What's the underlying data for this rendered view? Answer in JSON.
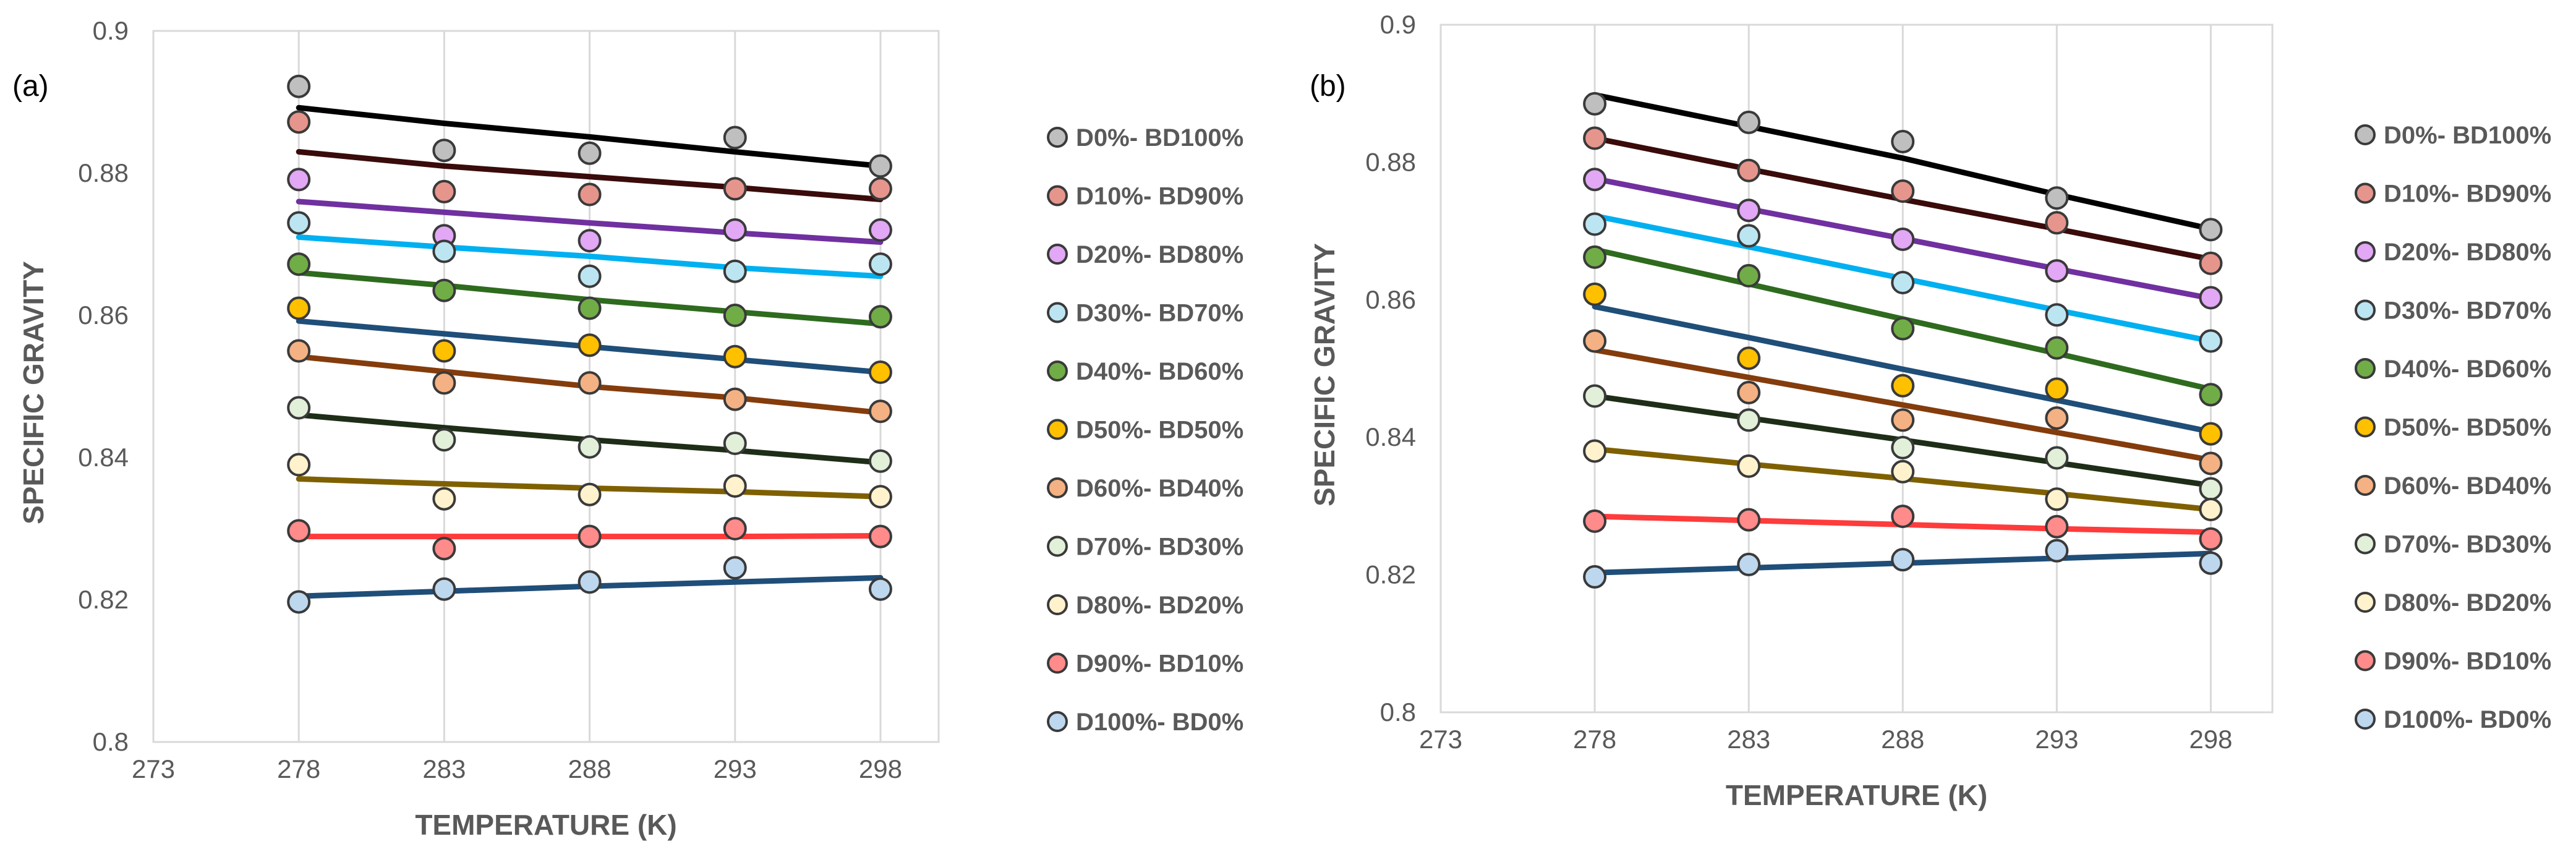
{
  "chart_data": [
    {
      "type": "scatter",
      "panel_label": "(a)",
      "title": "",
      "xlabel": "TEMPERATURE (K)",
      "ylabel": "SPECIFIC GRAVITY",
      "xlim": [
        273,
        300
      ],
      "ylim": [
        0.8,
        0.9
      ],
      "x_ticks": [
        "273",
        "278",
        "283",
        "288",
        "293",
        "298"
      ],
      "y_ticks": [
        "0.8",
        "0.82",
        "0.84",
        "0.86",
        "0.88",
        "0.9"
      ],
      "grid": "vertical",
      "legend_position": "right",
      "x": [
        278,
        283,
        288,
        293,
        298
      ],
      "series": [
        {
          "name": "D0%- BD100%",
          "fill": "#bfbfbf",
          "line": "#000000",
          "values": [
            0.8922,
            0.8832,
            0.8828,
            0.885,
            0.881
          ],
          "trend": [
            0.8892,
            0.887,
            0.8851,
            0.883,
            0.881
          ]
        },
        {
          "name": "D10%- BD90%",
          "fill": "#e6958c",
          "line": "#3a0b0b",
          "values": [
            0.8872,
            0.8774,
            0.877,
            0.8778,
            0.8778
          ],
          "trend": [
            0.883,
            0.881,
            0.8795,
            0.878,
            0.8763
          ]
        },
        {
          "name": "D20%- BD80%",
          "fill": "#e2a7f5",
          "line": "#7030a0",
          "values": [
            0.8791,
            0.8712,
            0.8705,
            0.872,
            0.872
          ],
          "trend": [
            0.876,
            0.8745,
            0.873,
            0.8716,
            0.8703
          ]
        },
        {
          "name": "D30%- BD70%",
          "fill": "#bce5f2",
          "line": "#00b0f0",
          "values": [
            0.873,
            0.869,
            0.8655,
            0.8662,
            0.8672
          ],
          "trend": [
            0.871,
            0.8696,
            0.8683,
            0.8667,
            0.8655
          ]
        },
        {
          "name": "D40%- BD60%",
          "fill": "#70ad47",
          "line": "#2e6b1e",
          "values": [
            0.8672,
            0.8635,
            0.861,
            0.86,
            0.8598
          ],
          "trend": [
            0.866,
            0.8642,
            0.8622,
            0.8605,
            0.8588
          ]
        },
        {
          "name": "D50%- BD50%",
          "fill": "#ffc000",
          "line": "#1f4e79",
          "values": [
            0.861,
            0.855,
            0.8558,
            0.8542,
            0.852
          ],
          "trend": [
            0.8592,
            0.8574,
            0.8556,
            0.8538,
            0.852
          ]
        },
        {
          "name": "D60%- BD40%",
          "fill": "#f4b183",
          "line": "#843c0c",
          "values": [
            0.855,
            0.8505,
            0.8505,
            0.8482,
            0.8465
          ],
          "trend": [
            0.8542,
            0.8521,
            0.85,
            0.8484,
            0.8463
          ]
        },
        {
          "name": "D70%- BD30%",
          "fill": "#e2efd9",
          "line": "#1e2d17",
          "values": [
            0.847,
            0.8425,
            0.8415,
            0.842,
            0.8395
          ],
          "trend": [
            0.846,
            0.8442,
            0.8425,
            0.841,
            0.8393
          ]
        },
        {
          "name": "D80%- BD20%",
          "fill": "#fff2cc",
          "line": "#7f6000",
          "values": [
            0.839,
            0.8342,
            0.8348,
            0.836,
            0.8345
          ],
          "trend": [
            0.837,
            0.8363,
            0.8357,
            0.8352,
            0.8345
          ]
        },
        {
          "name": "D90%- BD10%",
          "fill": "#ff8b8b",
          "line": "#ff3b3b",
          "values": [
            0.8297,
            0.8272,
            0.8289,
            0.83,
            0.8289
          ],
          "trend": [
            0.8289,
            0.8289,
            0.8289,
            0.8289,
            0.829
          ]
        },
        {
          "name": "D100%- BD0%",
          "fill": "#bdd7ee",
          "line": "#1f4e79",
          "values": [
            0.8197,
            0.8215,
            0.8225,
            0.8245,
            0.8215
          ],
          "trend": [
            0.8205,
            0.8212,
            0.8219,
            0.8225,
            0.8231
          ]
        }
      ]
    },
    {
      "type": "scatter",
      "panel_label": "(b)",
      "title": "",
      "xlabel": "TEMPERATURE (K)",
      "ylabel": "SPECIFIC GRAVITY",
      "xlim": [
        273,
        300
      ],
      "ylim": [
        0.8,
        0.9
      ],
      "x_ticks": [
        "273",
        "278",
        "283",
        "288",
        "293",
        "298"
      ],
      "y_ticks": [
        "0.8",
        "0.82",
        "0.84",
        "0.86",
        "0.88",
        "0.9"
      ],
      "grid": "vertical",
      "legend_position": "right",
      "x": [
        278,
        283,
        288,
        293,
        298
      ],
      "series": [
        {
          "name": "D0%- BD100%",
          "fill": "#bfbfbf",
          "line": "#000000",
          "values": [
            0.8885,
            0.8858,
            0.883,
            0.8748,
            0.8702
          ],
          "trend": [
            0.8898,
            0.8852,
            0.8806,
            0.8753,
            0.8703
          ]
        },
        {
          "name": "D10%- BD90%",
          "fill": "#e6958c",
          "line": "#3a0b0b",
          "values": [
            0.8835,
            0.8788,
            0.8758,
            0.8712,
            0.8653
          ],
          "trend": [
            0.8835,
            0.879,
            0.8746,
            0.8703,
            0.8659
          ]
        },
        {
          "name": "D20%- BD80%",
          "fill": "#e2a7f5",
          "line": "#7030a0",
          "values": [
            0.8775,
            0.873,
            0.8688,
            0.8642,
            0.8603
          ],
          "trend": [
            0.8776,
            0.8732,
            0.8689,
            0.8645,
            0.8602
          ]
        },
        {
          "name": "D30%- BD70%",
          "fill": "#bce5f2",
          "line": "#00b0f0",
          "values": [
            0.871,
            0.8693,
            0.8625,
            0.8578,
            0.854
          ],
          "trend": [
            0.8722,
            0.8677,
            0.8631,
            0.8585,
            0.854
          ]
        },
        {
          "name": "D40%- BD60%",
          "fill": "#70ad47",
          "line": "#2e6b1e",
          "values": [
            0.8662,
            0.8635,
            0.8558,
            0.853,
            0.8462
          ],
          "trend": [
            0.8673,
            0.8623,
            0.8572,
            0.8522,
            0.847
          ]
        },
        {
          "name": "D50%- BD50%",
          "fill": "#ffc000",
          "line": "#1f4e79",
          "values": [
            0.8608,
            0.8515,
            0.8475,
            0.847,
            0.8405
          ],
          "trend": [
            0.859,
            0.8545,
            0.8499,
            0.8454,
            0.8408
          ]
        },
        {
          "name": "D60%- BD40%",
          "fill": "#f4b183",
          "line": "#843c0c",
          "values": [
            0.854,
            0.8465,
            0.8425,
            0.8428,
            0.8362
          ],
          "trend": [
            0.8527,
            0.8487,
            0.8447,
            0.8407,
            0.8367
          ]
        },
        {
          "name": "D70%- BD30%",
          "fill": "#e2efd9",
          "line": "#1e2d17",
          "values": [
            0.846,
            0.8425,
            0.8385,
            0.837,
            0.8325
          ],
          "trend": [
            0.846,
            0.8428,
            0.8396,
            0.8363,
            0.833
          ]
        },
        {
          "name": "D80%- BD20%",
          "fill": "#fff2cc",
          "line": "#7f6000",
          "values": [
            0.838,
            0.8358,
            0.835,
            0.831,
            0.8295
          ],
          "trend": [
            0.8383,
            0.8361,
            0.834,
            0.8318,
            0.8295
          ]
        },
        {
          "name": "D90%- BD10%",
          "fill": "#ff8b8b",
          "line": "#ff3b3b",
          "values": [
            0.8278,
            0.828,
            0.8285,
            0.827,
            0.8252
          ],
          "trend": [
            0.8285,
            0.8279,
            0.8273,
            0.8267,
            0.8262
          ]
        },
        {
          "name": "D100%- BD0%",
          "fill": "#bdd7ee",
          "line": "#1f4e79",
          "values": [
            0.8197,
            0.8215,
            0.8222,
            0.8235,
            0.8217
          ],
          "trend": [
            0.8203,
            0.821,
            0.8217,
            0.8224,
            0.8231
          ]
        }
      ]
    }
  ]
}
